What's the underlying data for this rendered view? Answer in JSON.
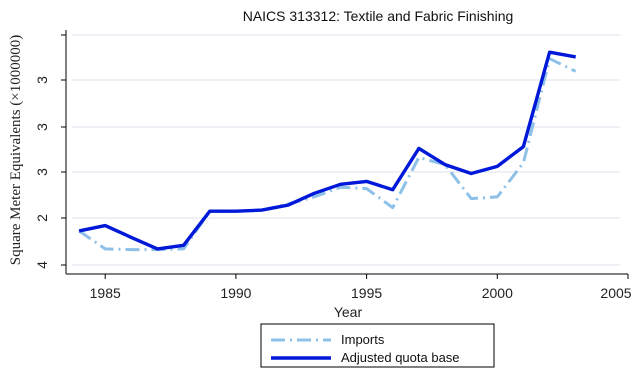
{
  "chart_data": {
    "type": "line",
    "title": "NAICS 313312: Textile and Fabric Finishing",
    "xlabel": "Year",
    "ylabel": "Square Meter Equivalents (×1000000)",
    "x_ticks": [
      "1985",
      "1990",
      "1995",
      "2000",
      "2005"
    ],
    "xlim": [
      1983.5,
      2005
    ],
    "y_tick_labels": [
      "4",
      "2",
      "3",
      "3",
      "3",
      ""
    ],
    "x": [
      1984,
      1985,
      1986,
      1987,
      1988,
      1989,
      1990,
      1991,
      1992,
      1993,
      1994,
      1995,
      1996,
      1997,
      1998,
      1999,
      2000,
      2001,
      2002,
      2003
    ],
    "series": [
      {
        "name": "Imports",
        "color": "#8ec1e8",
        "style": "dash-dot",
        "values": [
          2.0,
          1.5,
          1.48,
          1.48,
          1.5,
          2.55,
          2.55,
          2.58,
          2.75,
          2.95,
          3.22,
          3.18,
          2.65,
          4.05,
          3.85,
          2.9,
          2.95,
          3.9,
          6.8,
          6.45
        ]
      },
      {
        "name": "Adjusted quota base",
        "color": "#0018d8",
        "style": "solid",
        "values": [
          2.0,
          2.15,
          1.82,
          1.5,
          1.6,
          2.55,
          2.55,
          2.58,
          2.72,
          3.05,
          3.3,
          3.38,
          3.15,
          4.3,
          3.85,
          3.6,
          3.8,
          4.35,
          6.98,
          6.85
        ]
      }
    ],
    "grid": true,
    "legend_position": "bottom-center"
  }
}
